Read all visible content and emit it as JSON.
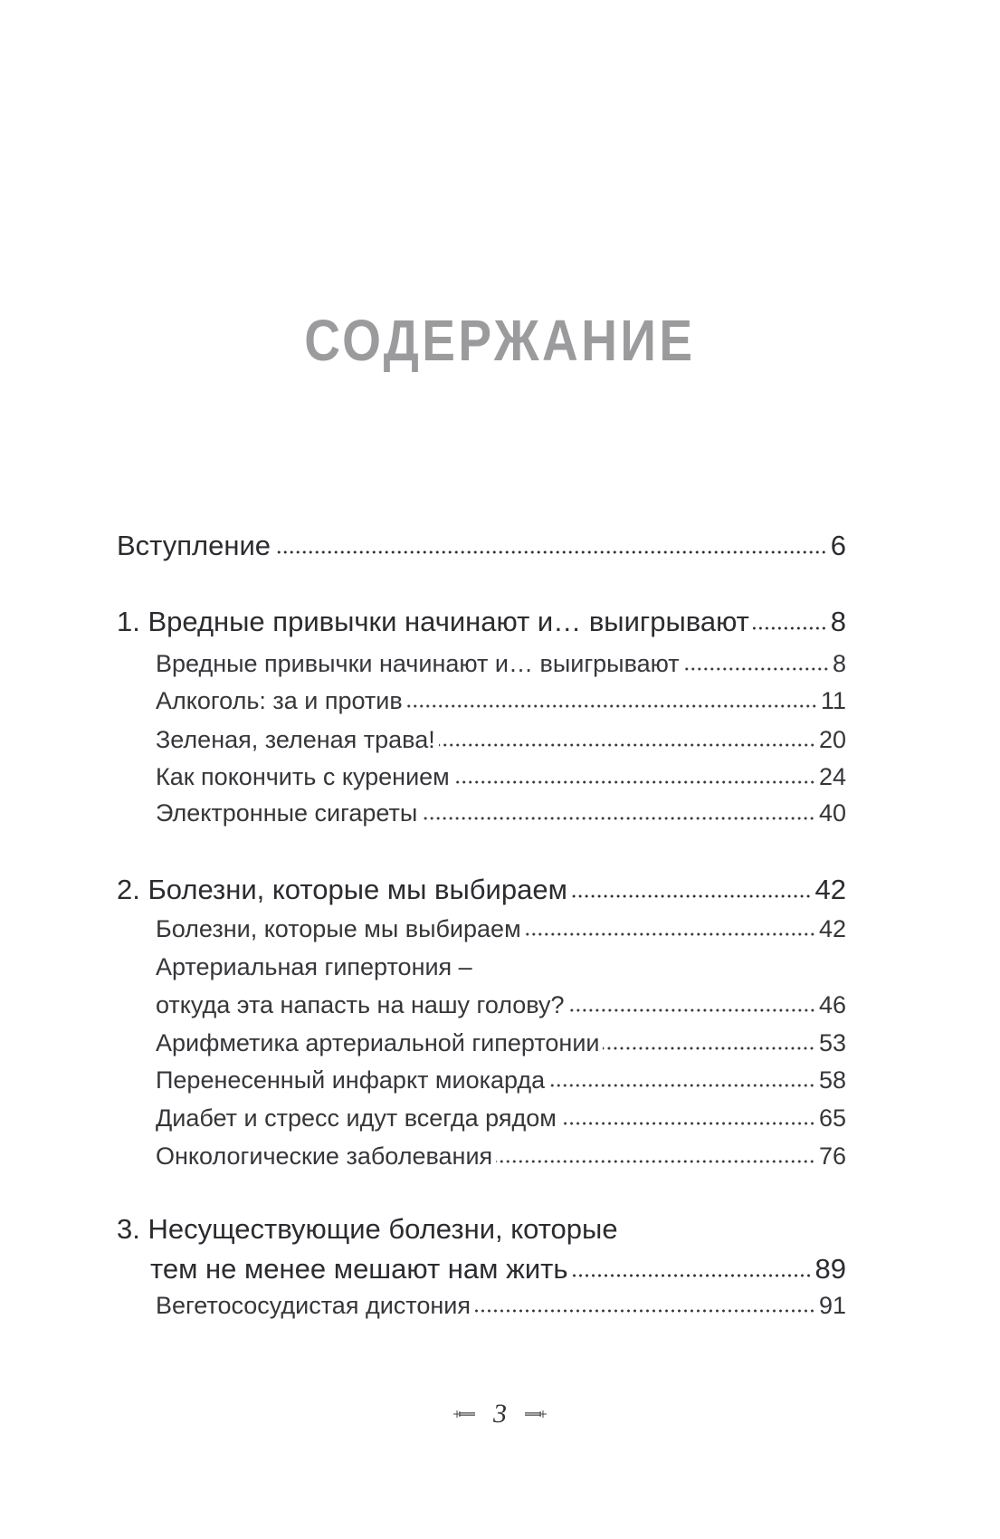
{
  "title": "СОДЕРЖАНИЕ",
  "entries": [
    {
      "label": "Вступление",
      "page": "6"
    },
    {
      "label": "1. Вредные привычки начинают и… выигрывают",
      "page": "8"
    },
    {
      "label": "Вредные привычки начинают и… выигрывают",
      "page": "8"
    },
    {
      "label": "Алкоголь: за и против",
      "page": "11"
    },
    {
      "label": "Зеленая, зеленая трава!",
      "page": "20"
    },
    {
      "label": "Как покончить с курением",
      "page": "24"
    },
    {
      "label": "Электронные сигареты",
      "page": "40"
    },
    {
      "label": "2. Болезни, которые мы выбираем",
      "page": "42"
    },
    {
      "label": "Болезни, которые мы выбираем",
      "page": "42"
    },
    {
      "label": "Артериальная гипертония –",
      "continuation": "откуда эта напасть на нашу голову?",
      "page": "46"
    },
    {
      "label": "Арифметика артериальной гипертонии",
      "page": "53"
    },
    {
      "label": "Перенесенный инфаркт миокарда",
      "page": "58"
    },
    {
      "label": "Диабет и стресс идут всегда рядом",
      "page": "65"
    },
    {
      "label": "Онкологические заболевания",
      "page": "76"
    },
    {
      "label": "3. Несуществующие болезни, которые",
      "continuation": "тем не менее мешают нам жить",
      "page": "89"
    },
    {
      "label": "Вегетососудистая дистония",
      "page": "91"
    }
  ],
  "footer": {
    "page_number": "3",
    "ornament_icon": "arrow-ornament"
  }
}
